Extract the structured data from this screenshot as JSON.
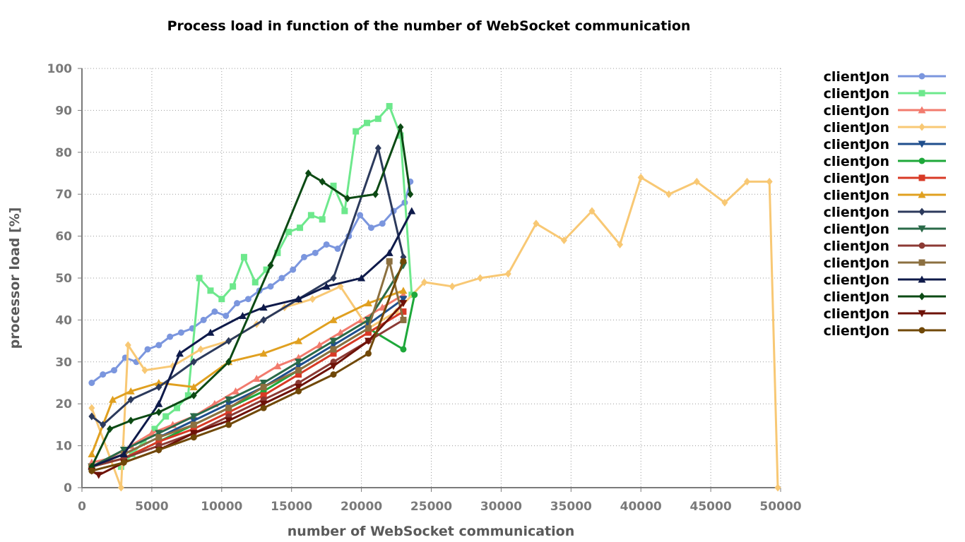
{
  "chart_data": {
    "type": "line",
    "title": "Process load in function of the number of WebSocket communication",
    "xlabel": "number of WebSocket communication",
    "ylabel": "processor load [%]",
    "xlim": [
      0,
      50000
    ],
    "ylim": [
      0,
      100
    ],
    "xticks": [
      "0",
      "5000",
      "10000",
      "15000",
      "20000",
      "25000",
      "30000",
      "35000",
      "40000",
      "45000",
      "50000"
    ],
    "yticks": [
      "0",
      "10",
      "20",
      "30",
      "40",
      "50",
      "60",
      "70",
      "80",
      "90",
      "100"
    ],
    "grid": true,
    "legend_position": "right",
    "series": [
      {
        "name": "clientJon",
        "color": "#7b96de",
        "marker": "circle",
        "x": [
          700,
          1500,
          2300,
          3100,
          3900,
          4700,
          5500,
          6300,
          7100,
          7900,
          8700,
          9500,
          10300,
          11100,
          11900,
          12700,
          13500,
          14300,
          15100,
          15900,
          16700,
          17500,
          18300,
          19100,
          19900,
          20700,
          21500,
          22300,
          23100,
          23500
        ],
        "y": [
          25,
          27,
          28,
          31,
          30,
          33,
          34,
          36,
          37,
          38,
          40,
          42,
          41,
          44,
          45,
          47,
          48,
          50,
          52,
          55,
          56,
          58,
          57,
          60,
          65,
          62,
          63,
          66,
          68,
          73
        ]
      },
      {
        "name": "clientJon",
        "color": "#6de88c",
        "marker": "square",
        "x": [
          2800,
          3600,
          4400,
          5200,
          6000,
          6800,
          7600,
          8400,
          9200,
          10000,
          10800,
          11600,
          12400,
          13200,
          14000,
          14800,
          15600,
          16400,
          17200,
          18000,
          18800,
          19600,
          20400,
          21200,
          22000,
          22800,
          23600
        ],
        "y": [
          5,
          8,
          11,
          14,
          17,
          19,
          22,
          50,
          47,
          45,
          48,
          55,
          49,
          52,
          56,
          61,
          62,
          65,
          64,
          72,
          66,
          85,
          87,
          88,
          91,
          84,
          46
        ]
      },
      {
        "name": "clientJon",
        "color": "#f27b6e",
        "marker": "triangle",
        "x": [
          700,
          2000,
          3500,
          5000,
          6500,
          8000,
          9500,
          11000,
          12500,
          14000,
          15500,
          17000,
          18500,
          20000,
          21500,
          23000
        ],
        "y": [
          6,
          7,
          10,
          13,
          15,
          17,
          20,
          23,
          26,
          29,
          31,
          34,
          37,
          40,
          43,
          46
        ]
      },
      {
        "name": "clientJon",
        "color": "#f8c874",
        "marker": "diamond",
        "x": [
          700,
          2800,
          3300,
          4500,
          6500,
          8500,
          10500,
          12500,
          14500,
          16500,
          18500,
          20500,
          22500,
          24500,
          26500,
          28500,
          30500,
          32500,
          34500,
          36500,
          38500,
          40000,
          42000,
          44000,
          46000,
          47600,
          49200,
          49800
        ],
        "y": [
          19,
          0,
          34,
          28,
          29,
          33,
          35,
          39,
          43,
          45,
          48,
          38,
          42,
          49,
          48,
          50,
          51,
          63,
          59,
          66,
          58,
          74,
          70,
          73,
          68,
          73,
          73,
          0
        ]
      },
      {
        "name": "clientJon",
        "color": "#1f4e8c",
        "marker": "triangle-down",
        "x": [
          700,
          3000,
          5500,
          8000,
          10500,
          13000,
          15500,
          18000,
          20500,
          23000
        ],
        "y": [
          5,
          8,
          12,
          16,
          20,
          24,
          29,
          34,
          39,
          45
        ]
      },
      {
        "name": "clientJon",
        "color": "#1ea83a",
        "marker": "circle",
        "x": [
          700,
          3000,
          5500,
          8000,
          10500,
          13000,
          15500,
          18000,
          20500,
          23000,
          23800
        ],
        "y": [
          5,
          7,
          11,
          15,
          19,
          23,
          28,
          33,
          38,
          33,
          46
        ]
      },
      {
        "name": "clientJon",
        "color": "#d83a26",
        "marker": "square",
        "x": [
          700,
          3000,
          5500,
          8000,
          10500,
          13000,
          15500,
          18000,
          20500,
          23000
        ],
        "y": [
          5,
          7,
          11,
          14,
          18,
          22,
          27,
          32,
          37,
          42
        ]
      },
      {
        "name": "clientJon",
        "color": "#e0a020",
        "marker": "triangle",
        "x": [
          700,
          2200,
          3500,
          5500,
          8000,
          10500,
          13000,
          15500,
          18000,
          20500,
          23000
        ],
        "y": [
          8,
          21,
          23,
          25,
          24,
          30,
          32,
          35,
          40,
          44,
          47
        ]
      },
      {
        "name": "clientJon",
        "color": "#2c3a5c",
        "marker": "diamond",
        "x": [
          700,
          1500,
          3500,
          5500,
          8000,
          10500,
          13000,
          15500,
          18000,
          21200,
          23000
        ],
        "y": [
          17,
          15,
          21,
          24,
          30,
          35,
          40,
          45,
          50,
          81,
          55
        ]
      },
      {
        "name": "clientJon",
        "color": "#2a6a48",
        "marker": "triangle-down",
        "x": [
          700,
          3000,
          5500,
          8000,
          10500,
          13000,
          15500,
          18000,
          20500,
          23000
        ],
        "y": [
          5,
          9,
          13,
          17,
          21,
          25,
          30,
          35,
          40,
          53
        ]
      },
      {
        "name": "clientJon",
        "color": "#8c3a34",
        "marker": "circle",
        "x": [
          700,
          3000,
          5500,
          8000,
          10500,
          13000,
          15500,
          18000,
          20500,
          23000
        ],
        "y": [
          5,
          7,
          10,
          13,
          17,
          21,
          25,
          30,
          35,
          40
        ]
      },
      {
        "name": "clientJon",
        "color": "#8c7040",
        "marker": "square",
        "x": [
          700,
          3000,
          5500,
          8000,
          10500,
          13000,
          15500,
          18000,
          20500,
          22000,
          23000
        ],
        "y": [
          5,
          8,
          12,
          15,
          19,
          24,
          28,
          33,
          38,
          54,
          40
        ]
      },
      {
        "name": "clientJon",
        "color": "#0e1a4a",
        "marker": "triangle",
        "x": [
          700,
          3000,
          5500,
          7000,
          9200,
          11500,
          13000,
          15500,
          17500,
          20000,
          22000,
          23600
        ],
        "y": [
          5,
          8,
          20,
          32,
          37,
          41,
          43,
          45,
          48,
          50,
          56,
          66
        ]
      },
      {
        "name": "clientJon",
        "color": "#0c4a14",
        "marker": "diamond",
        "x": [
          700,
          2000,
          3500,
          5500,
          8000,
          10500,
          13500,
          16200,
          17200,
          19000,
          21000,
          22800,
          23500
        ],
        "y": [
          5,
          14,
          16,
          18,
          22,
          30,
          53,
          75,
          73,
          69,
          70,
          86,
          70
        ]
      },
      {
        "name": "clientJon",
        "color": "#6e1208",
        "marker": "triangle-down",
        "x": [
          700,
          1200,
          3000,
          5500,
          8000,
          10500,
          13000,
          15500,
          18000,
          20500,
          23000
        ],
        "y": [
          4,
          3,
          6,
          9,
          13,
          16,
          20,
          24,
          29,
          35,
          44
        ]
      },
      {
        "name": "clientJon",
        "color": "#704808",
        "marker": "circle",
        "x": [
          700,
          3000,
          5500,
          8000,
          10500,
          13000,
          15500,
          18000,
          20500,
          23000
        ],
        "y": [
          4,
          6,
          9,
          12,
          15,
          19,
          23,
          27,
          32,
          54
        ]
      }
    ]
  }
}
